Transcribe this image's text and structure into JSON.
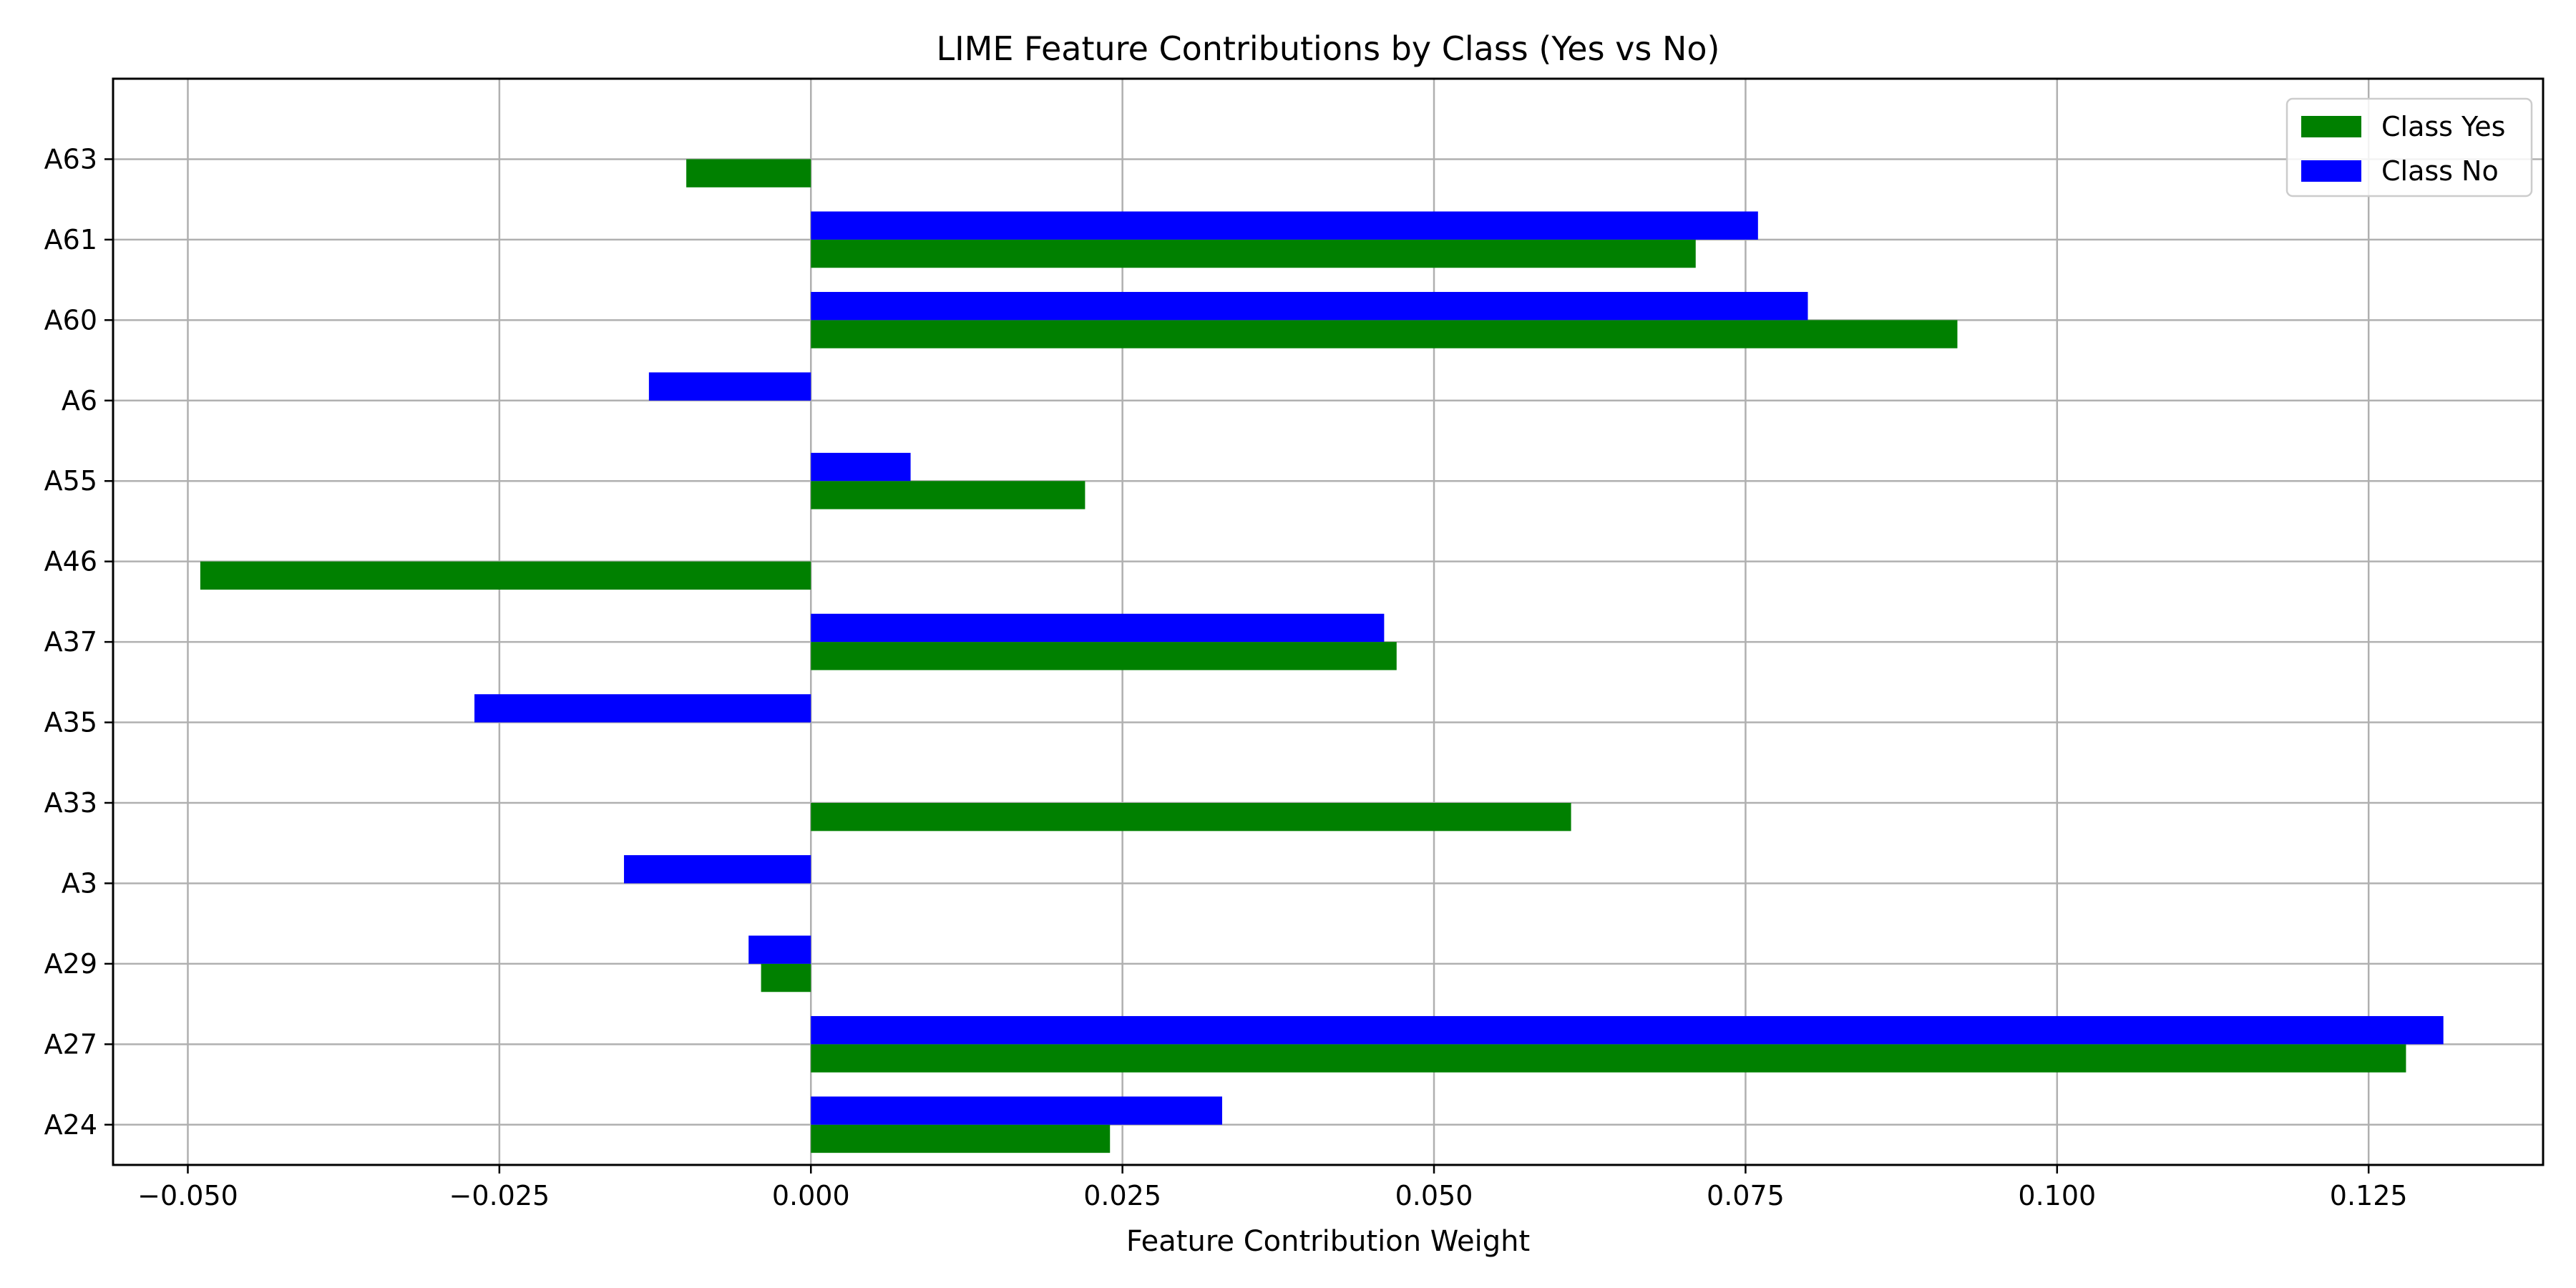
{
  "chart_data": {
    "type": "bar",
    "orientation": "horizontal",
    "title": "LIME Feature Contributions by Class (Yes vs No)",
    "xlabel": "Feature Contribution Weight",
    "ylabel": "",
    "xlim": [
      -0.056,
      0.139
    ],
    "xticks": [
      -0.05,
      -0.025,
      0.0,
      0.025,
      0.05,
      0.075,
      0.1,
      0.125
    ],
    "xtick_labels": [
      "−0.050",
      "−0.025",
      "0.000",
      "0.025",
      "0.050",
      "0.075",
      "0.100",
      "0.125"
    ],
    "grid": true,
    "legend_position": "top-right",
    "categories": [
      "A24",
      "A27",
      "A29",
      "A3",
      "A33",
      "A35",
      "A37",
      "A46",
      "A55",
      "A6",
      "A60",
      "A61",
      "A63"
    ],
    "series": [
      {
        "name": "Class Yes",
        "color": "#008000",
        "values": [
          0.024,
          0.128,
          -0.004,
          null,
          0.061,
          null,
          0.047,
          -0.049,
          0.022,
          null,
          0.092,
          0.071,
          -0.01
        ]
      },
      {
        "name": "Class No",
        "color": "#0000ff",
        "values": [
          0.033,
          0.131,
          -0.005,
          -0.015,
          null,
          -0.027,
          0.046,
          null,
          0.008,
          -0.013,
          0.08,
          0.076,
          null
        ]
      }
    ]
  }
}
